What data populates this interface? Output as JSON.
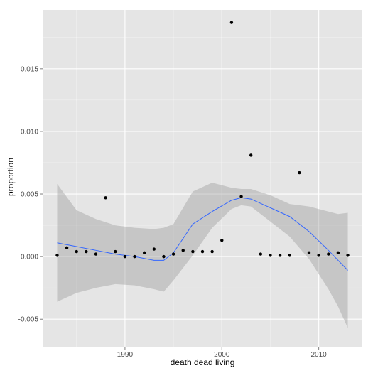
{
  "chart_data": {
    "type": "scatter",
    "xlabel": "death dead living",
    "ylabel": "proportion",
    "xlim": [
      1981.5,
      2014.5
    ],
    "ylim": [
      -0.0072,
      0.0197
    ],
    "x_ticks": [
      1990,
      2000,
      2010
    ],
    "x_tick_labels": [
      "1990",
      "2000",
      "2010"
    ],
    "y_ticks": [
      -0.005,
      0.0,
      0.005,
      0.01,
      0.015
    ],
    "y_tick_labels": [
      "-0.005",
      "0.000",
      "0.005",
      "0.010",
      "0.015"
    ],
    "grid": true,
    "colors": {
      "panel": "#e5e5e5",
      "grid": "#ffffff",
      "points": "#000000",
      "smooth_line": "#3366ff",
      "ribbon": "#999999"
    },
    "points": [
      {
        "x": 1983,
        "y": 0.0001
      },
      {
        "x": 1984,
        "y": 0.0007
      },
      {
        "x": 1985,
        "y": 0.0004
      },
      {
        "x": 1986,
        "y": 0.0004
      },
      {
        "x": 1987,
        "y": 0.0002
      },
      {
        "x": 1988,
        "y": 0.0047
      },
      {
        "x": 1989,
        "y": 0.0004
      },
      {
        "x": 1990,
        "y": 0.0
      },
      {
        "x": 1991,
        "y": 0.0
      },
      {
        "x": 1992,
        "y": 0.0003
      },
      {
        "x": 1993,
        "y": 0.0006
      },
      {
        "x": 1994,
        "y": 0.0
      },
      {
        "x": 1995,
        "y": 0.0002
      },
      {
        "x": 1996,
        "y": 0.0005
      },
      {
        "x": 1997,
        "y": 0.0004
      },
      {
        "x": 1998,
        "y": 0.0004
      },
      {
        "x": 1999,
        "y": 0.0004
      },
      {
        "x": 2000,
        "y": 0.0013
      },
      {
        "x": 2001,
        "y": 0.0187
      },
      {
        "x": 2002,
        "y": 0.0048
      },
      {
        "x": 2003,
        "y": 0.0081
      },
      {
        "x": 2004,
        "y": 0.0002
      },
      {
        "x": 2005,
        "y": 0.0001
      },
      {
        "x": 2006,
        "y": 0.0001
      },
      {
        "x": 2007,
        "y": 0.0001
      },
      {
        "x": 2008,
        "y": 0.0067
      },
      {
        "x": 2009,
        "y": 0.0003
      },
      {
        "x": 2010,
        "y": 0.0001
      },
      {
        "x": 2011,
        "y": 0.0002
      },
      {
        "x": 2012,
        "y": 0.0003
      },
      {
        "x": 2013,
        "y": 0.0001
      }
    ],
    "smooth": {
      "x": [
        1983,
        1985,
        1987,
        1989,
        1991,
        1993,
        1994,
        1995,
        1997,
        1999,
        2001,
        2002,
        2003,
        2005,
        2007,
        2009,
        2011,
        2012,
        2013
      ],
      "y": [
        0.0011,
        0.0008,
        0.0005,
        0.0002,
        0.0,
        -0.0003,
        -0.0003,
        0.0003,
        0.0026,
        0.0036,
        0.0045,
        0.0047,
        0.0046,
        0.0039,
        0.0032,
        0.002,
        0.0005,
        -0.0003,
        -0.0011
      ],
      "lower": [
        -0.0036,
        -0.0029,
        -0.0025,
        -0.0022,
        -0.0023,
        -0.0026,
        -0.0028,
        -0.0019,
        0.0001,
        0.0023,
        0.0038,
        0.0041,
        0.004,
        0.0028,
        0.0016,
        -0.0002,
        -0.0026,
        -0.004,
        -0.0057
      ],
      "upper": [
        0.0058,
        0.0037,
        0.003,
        0.0025,
        0.0023,
        0.0022,
        0.0023,
        0.0026,
        0.0052,
        0.0059,
        0.0055,
        0.0054,
        0.0054,
        0.0049,
        0.0042,
        0.004,
        0.0036,
        0.0034,
        0.0035
      ]
    }
  }
}
